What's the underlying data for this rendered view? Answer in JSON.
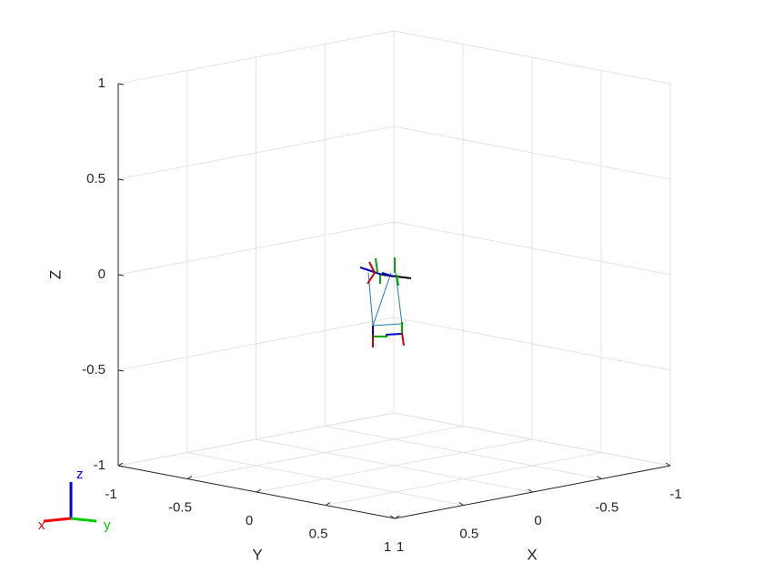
{
  "chart_data": {
    "type": "plot3",
    "xlabel": "X",
    "ylabel": "Y",
    "zlabel": "Z",
    "xlim": [
      -1,
      1
    ],
    "ylim": [
      -1,
      1
    ],
    "zlim": [
      -1,
      1
    ],
    "xticks": [
      -1,
      -0.5,
      0,
      0.5,
      1
    ],
    "yticks": [
      -1,
      -0.5,
      0,
      0.5,
      1
    ],
    "zticks": [
      -1,
      -0.5,
      0,
      0.5,
      1
    ],
    "grid": true,
    "triad": {
      "x": "x",
      "y": "y",
      "z": "z"
    }
  }
}
